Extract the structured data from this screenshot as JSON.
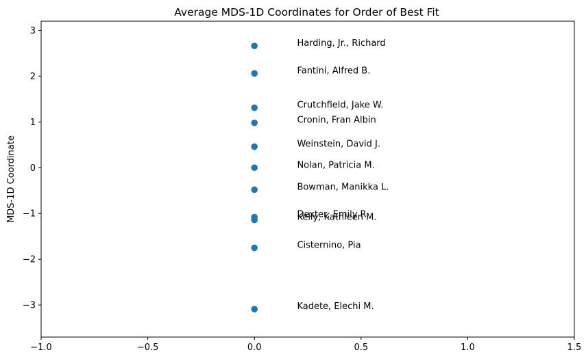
{
  "chart_data": {
    "type": "scatter",
    "title": "Average MDS-1D Coordinates for Order of Best Fit",
    "xlabel": "",
    "ylabel": "MDS-1D Coordinate",
    "xlim": [
      -1.0,
      1.5
    ],
    "ylim": [
      -3.7,
      3.2
    ],
    "xticks": [
      -1.0,
      -0.5,
      0.0,
      0.5,
      1.0,
      1.5
    ],
    "xtick_labels": [
      "−1.0",
      "−0.5",
      "0.0",
      "0.5",
      "1.0",
      "1.5"
    ],
    "yticks": [
      -3,
      -2,
      -1,
      0,
      1,
      2,
      3
    ],
    "ytick_labels": [
      "−3",
      "−2",
      "−1",
      "0",
      "1",
      "2",
      "3"
    ],
    "grid": false,
    "marker_color": "#1f77b4",
    "points": [
      {
        "x": 0.0,
        "y": 2.66,
        "label": "Harding, Jr., Richard"
      },
      {
        "x": 0.0,
        "y": 2.06,
        "label": "Fantini, Alfred B."
      },
      {
        "x": 0.0,
        "y": 1.31,
        "label": "Crutchfield, Jake W."
      },
      {
        "x": 0.0,
        "y": 0.98,
        "label": "Cronin, Fran Albin"
      },
      {
        "x": 0.0,
        "y": 0.46,
        "label": "Weinstein, David J."
      },
      {
        "x": 0.0,
        "y": 0.0,
        "label": "Nolan, Patricia M."
      },
      {
        "x": 0.0,
        "y": -0.48,
        "label": "Bowman, Manikka L."
      },
      {
        "x": 0.0,
        "y": -1.08,
        "label": "Dexter, Emily R."
      },
      {
        "x": 0.0,
        "y": -1.14,
        "label": "Kelly, Kathleen M."
      },
      {
        "x": 0.0,
        "y": -1.75,
        "label": "Cisternino, Pia"
      },
      {
        "x": 0.0,
        "y": -3.09,
        "label": "Kadete, Elechi M."
      }
    ]
  }
}
